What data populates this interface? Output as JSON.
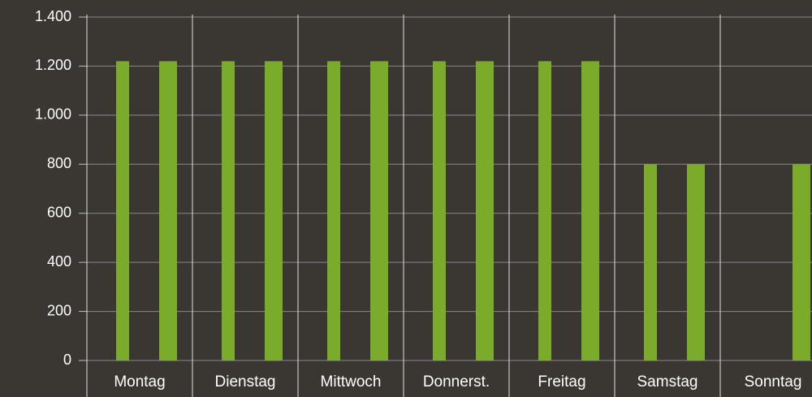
{
  "chart_data": {
    "type": "bar",
    "categories": [
      "Montag",
      "Dienstag",
      "Mittwoch",
      "Donnerst.",
      "Freitag",
      "Samstag",
      "Sonntag"
    ],
    "series": [
      {
        "color": "#7aab2a",
        "values": [
          1220,
          1220,
          1220,
          1220,
          1220,
          800,
          null
        ]
      },
      {
        "color": "#7aab2a",
        "values": [
          1220,
          1220,
          1220,
          1220,
          1220,
          800,
          800
        ]
      }
    ],
    "ylim": [
      0,
      1400
    ],
    "yticks": [
      0,
      200,
      400,
      600,
      800,
      {
        "value": 1000,
        "label": "1.000"
      },
      {
        "value": 1200,
        "label": "1.200"
      },
      {
        "value": 1400,
        "label": "1.400"
      }
    ],
    "grid": true
  }
}
